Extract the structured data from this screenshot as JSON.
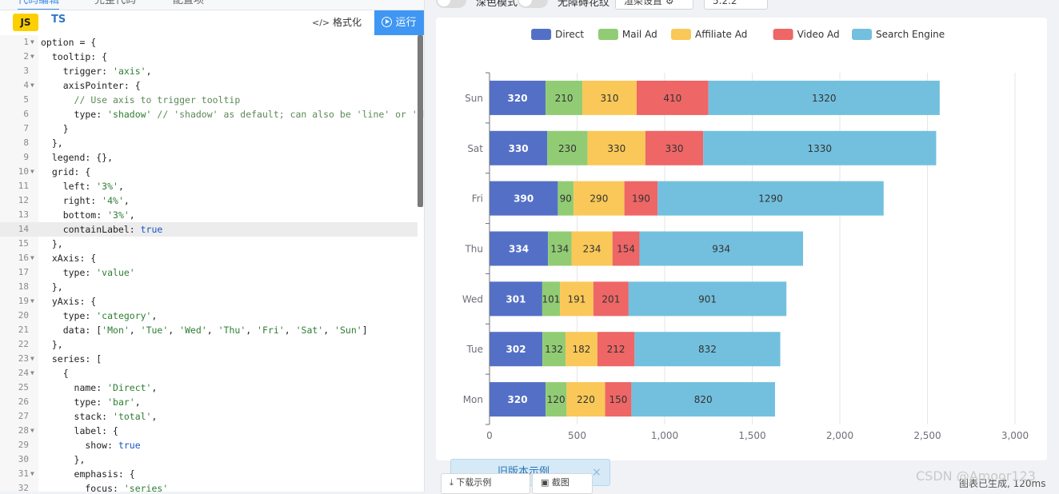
{
  "editor": {
    "tabs": [
      "代码编辑",
      "完整代码",
      "配置项"
    ],
    "lang_js": "JS",
    "lang_ts": "TS",
    "format_label": "格式化",
    "run_label": "运行",
    "active_line": 14,
    "lines": [
      {
        "n": "1",
        "fold": true,
        "code": "option = {"
      },
      {
        "n": "2",
        "fold": true,
        "code": "  tooltip: {"
      },
      {
        "n": "3",
        "fold": false,
        "code": "    trigger: 'axis',"
      },
      {
        "n": "4",
        "fold": true,
        "code": "    axisPointer: {"
      },
      {
        "n": "5",
        "fold": false,
        "code": "      // Use axis to trigger tooltip"
      },
      {
        "n": "6",
        "fold": false,
        "code": "      type: 'shadow' // 'shadow' as default; can also be 'line' or 'shad"
      },
      {
        "n": "7",
        "fold": false,
        "code": "    }"
      },
      {
        "n": "8",
        "fold": false,
        "code": "  },"
      },
      {
        "n": "9",
        "fold": false,
        "code": "  legend: {},"
      },
      {
        "n": "10",
        "fold": true,
        "code": "  grid: {"
      },
      {
        "n": "11",
        "fold": false,
        "code": "    left: '3%',"
      },
      {
        "n": "12",
        "fold": false,
        "code": "    right: '4%',"
      },
      {
        "n": "13",
        "fold": false,
        "code": "    bottom: '3%',"
      },
      {
        "n": "14",
        "fold": false,
        "code": "    containLabel: true"
      },
      {
        "n": "15",
        "fold": false,
        "code": "  },"
      },
      {
        "n": "16",
        "fold": true,
        "code": "  xAxis: {"
      },
      {
        "n": "17",
        "fold": false,
        "code": "    type: 'value'"
      },
      {
        "n": "18",
        "fold": false,
        "code": "  },"
      },
      {
        "n": "19",
        "fold": true,
        "code": "  yAxis: {"
      },
      {
        "n": "20",
        "fold": false,
        "code": "    type: 'category',"
      },
      {
        "n": "21",
        "fold": false,
        "code": "    data: ['Mon', 'Tue', 'Wed', 'Thu', 'Fri', 'Sat', 'Sun']"
      },
      {
        "n": "22",
        "fold": false,
        "code": "  },"
      },
      {
        "n": "23",
        "fold": true,
        "code": "  series: ["
      },
      {
        "n": "24",
        "fold": true,
        "code": "    {"
      },
      {
        "n": "25",
        "fold": false,
        "code": "      name: 'Direct',"
      },
      {
        "n": "26",
        "fold": false,
        "code": "      type: 'bar',"
      },
      {
        "n": "27",
        "fold": false,
        "code": "      stack: 'total',"
      },
      {
        "n": "28",
        "fold": true,
        "code": "      label: {"
      },
      {
        "n": "29",
        "fold": false,
        "code": "        show: true"
      },
      {
        "n": "30",
        "fold": false,
        "code": "      },"
      },
      {
        "n": "31",
        "fold": true,
        "code": "      emphasis: {"
      },
      {
        "n": "32",
        "fold": false,
        "code": "        focus: 'series'"
      }
    ]
  },
  "controls": {
    "dark_mode_label": "深色模式",
    "no_barrier_label": "无障碍花纹",
    "render_settings_label": "渲染设置",
    "version_label": "5.2.2"
  },
  "chart_data": {
    "type": "bar",
    "orientation": "horizontal",
    "stacked": true,
    "categories": [
      "Mon",
      "Tue",
      "Wed",
      "Thu",
      "Fri",
      "Sat",
      "Sun"
    ],
    "series": [
      {
        "name": "Direct",
        "color": "#5470c6",
        "values": [
          320,
          302,
          301,
          334,
          390,
          330,
          320
        ]
      },
      {
        "name": "Mail Ad",
        "color": "#91cc75",
        "values": [
          120,
          132,
          101,
          134,
          90,
          230,
          210
        ]
      },
      {
        "name": "Affiliate Ad",
        "color": "#fac858",
        "values": [
          220,
          182,
          191,
          234,
          290,
          330,
          310
        ]
      },
      {
        "name": "Video Ad",
        "color": "#ee6666",
        "values": [
          150,
          212,
          201,
          154,
          190,
          330,
          410
        ]
      },
      {
        "name": "Search Engine",
        "color": "#73c0de",
        "values": [
          820,
          832,
          901,
          934,
          1290,
          1330,
          1320
        ]
      }
    ],
    "xlim": [
      0,
      3000
    ],
    "x_ticks": [
      0,
      500,
      1000,
      1500,
      2000,
      2500,
      3000
    ],
    "x_tick_labels": [
      "0",
      "500",
      "1,000",
      "1,500",
      "2,000",
      "2,500",
      "3,000"
    ],
    "legend_position": "top-center",
    "grid": true
  },
  "toast": {
    "text": "旧版本示例",
    "close": "×"
  },
  "bottom": {
    "download_label": "下载示例",
    "screenshot_label": "截图",
    "watermark": "CSDN @Amoor123",
    "gen_time": "图表已生成, 120ms"
  }
}
